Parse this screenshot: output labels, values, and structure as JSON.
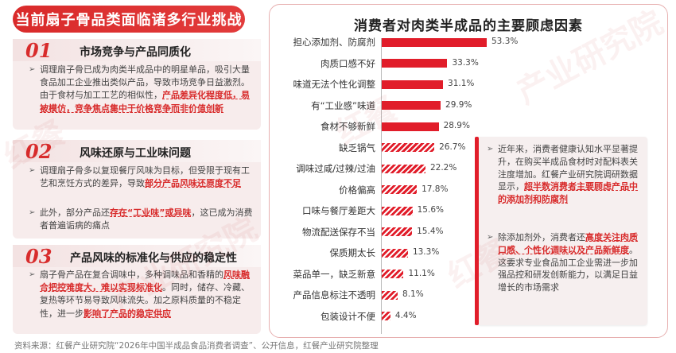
{
  "left": {
    "title": "当前扇子骨品类面临诸多行业挑战",
    "sections": [
      {
        "num": "01",
        "title": "市场竞争与产品同质化",
        "bullets": [
          {
            "parts": [
              {
                "t": "调理扇子骨已成为肉类半成品中的明星单品，吸引大量食品加工企业推出类似产品，导致市场竞争日益激烈。由于食材与加工工艺的相似性，"
              },
              {
                "t": "产品差异化程度低，易被模仿，竞争焦点集中于价格竞争而非价值创新",
                "hl": true
              }
            ]
          }
        ]
      },
      {
        "num": "02",
        "title": "风味还原与工业味问题",
        "bullets": [
          {
            "parts": [
              {
                "t": "调理扇子骨多以复现餐厅风味为目标，但受限于现有工艺和烹饪方式的差异，导致"
              },
              {
                "t": "部分产品风味还原度不足",
                "hl": true
              }
            ]
          },
          {
            "parts": [
              {
                "t": "此外，部分产品还"
              },
              {
                "t": "存在“工业味”或异味",
                "hl": true
              },
              {
                "t": "，这已成为消费者普遍诟病的痛点"
              }
            ]
          }
        ]
      },
      {
        "num": "03",
        "title": "产品风味的标准化与供应的稳定性",
        "bullets": [
          {
            "parts": [
              {
                "t": "扇子骨产品在复合调味中，多种调味品和香精的"
              },
              {
                "t": "风味融合把控难度大，难以实现标准化",
                "hl": true
              },
              {
                "t": "。同时，储存、冷藏、复热等环节易导致风味流失。加之原料质量的不稳定性，进一步"
              },
              {
                "t": "影响了产品的稳定供应",
                "hl": true
              }
            ]
          }
        ]
      }
    ]
  },
  "chart_data": {
    "type": "bar",
    "orientation": "horizontal",
    "title": "消费者对肉类半成品的主要顾虑因素",
    "unit": "%",
    "categories": [
      "担心添加剂、防腐剂",
      "肉质口感不好",
      "味道无法个性化调整",
      "有“工业感”味道",
      "食材不够新鲜",
      "缺乏锅气",
      "调味过咸/过辣/过油",
      "价格偏高",
      "口味与餐厅差距大",
      "物流配送保存不当",
      "保质期太长",
      "菜品单一，缺乏新意",
      "产品信息标注不透明",
      "包装设计不便"
    ],
    "values": [
      53.3,
      33.3,
      31.1,
      29.9,
      28.9,
      26.7,
      22.2,
      17.8,
      15.6,
      15.4,
      13.3,
      11.1,
      8.1,
      4.4
    ],
    "labels": [
      "53.3%",
      "33.3%",
      "31.1%",
      "29.9%",
      "28.9%",
      "26.7%",
      "22.2%",
      "17.8%",
      "15.6%",
      "15.4%",
      "13.3%",
      "11.1%",
      "8.1%",
      "4.4%"
    ],
    "highlight_count": 5,
    "colors": {
      "bar": "#e11d2a"
    }
  },
  "note": {
    "bullets": [
      {
        "parts": [
          {
            "t": "近年来，消费者健康认知水平显著提升，在购买半成品食材时对配料表关注度增加。红餐产业研究院调研数据显示，"
          },
          {
            "t": "超半数消费者主要顾虑产品中的添加剂和防腐剂",
            "hl": true
          }
        ]
      },
      {
        "parts": [
          {
            "t": "除添加剂外，消费者还"
          },
          {
            "t": "高度关注肉质口感、个性化调味以及产品新鲜度",
            "hl": true
          },
          {
            "t": "。这要求专业食品加工企业需进一步加强品控和研发创新能力，以满足日益增长的市场需求"
          }
        ]
      }
    ]
  },
  "footer": "资料来源：红餐产业研究院“2026年中国半成品食品消费者调查”、公开信息，红餐产业研究院整理",
  "watermarks": [
    "红餐",
    "产业研究院"
  ]
}
